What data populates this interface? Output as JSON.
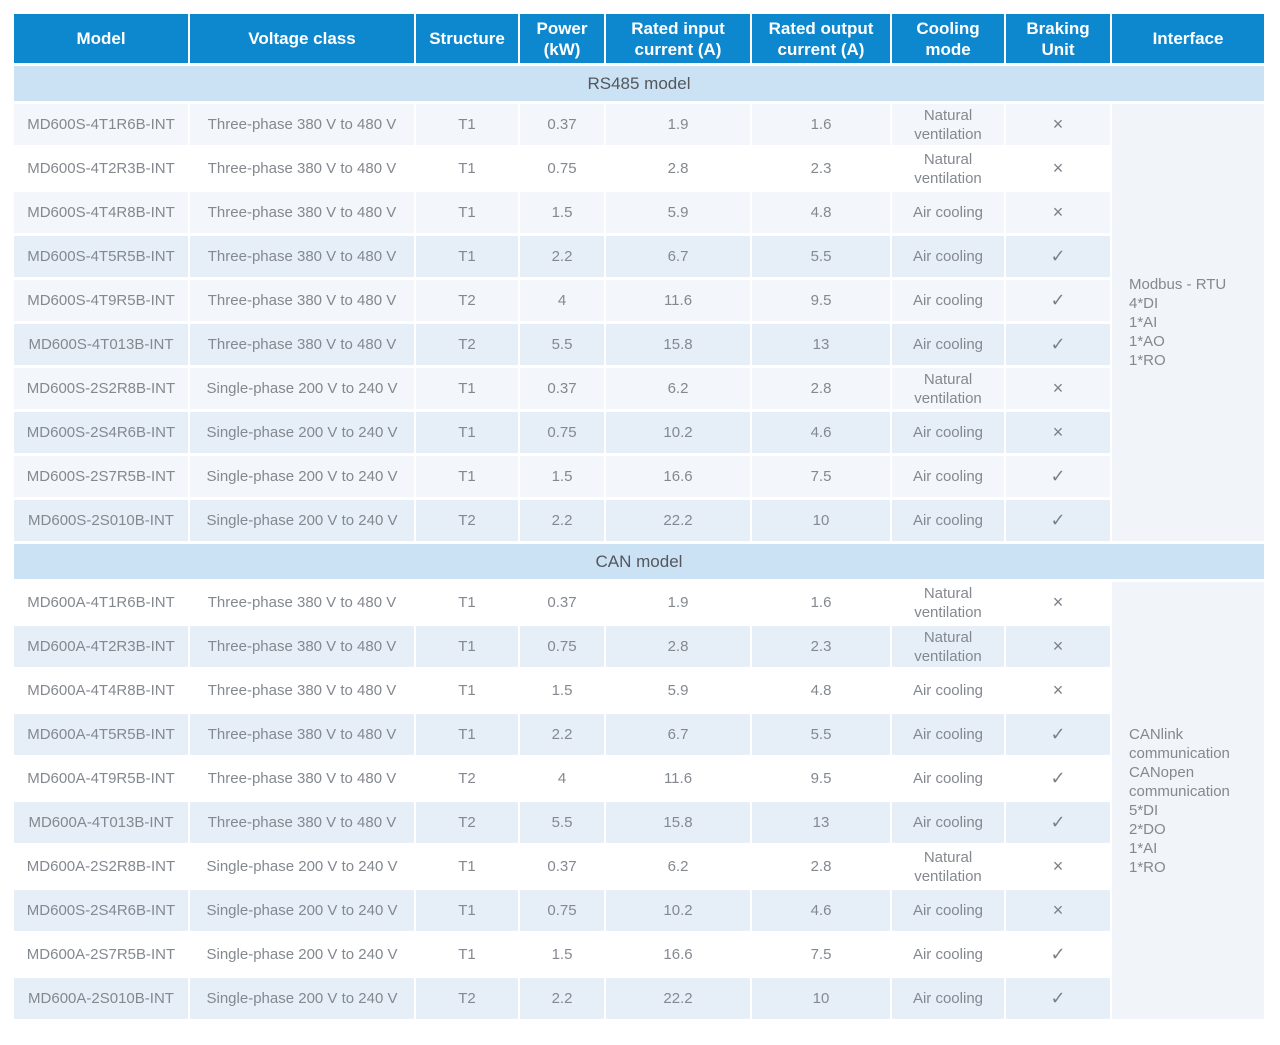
{
  "table": {
    "columns": [
      {
        "key": "model",
        "label": "Model"
      },
      {
        "key": "voltage",
        "label": "Voltage class"
      },
      {
        "key": "structure",
        "label": "Structure"
      },
      {
        "key": "power",
        "label": "Power\n(kW)"
      },
      {
        "key": "input",
        "label": "Rated input\ncurrent (A)"
      },
      {
        "key": "output",
        "label": "Rated output\ncurrent (A)"
      },
      {
        "key": "cooling",
        "label": "Cooling\nmode"
      },
      {
        "key": "braking",
        "label": "Braking\nUnit"
      },
      {
        "key": "interface",
        "label": "Interface"
      }
    ],
    "sections": [
      {
        "title": "RS485 model",
        "interface_lines": [
          "Modbus - RTU",
          "4*DI",
          "1*AI",
          "1*AO",
          "1*RO"
        ],
        "rows": [
          {
            "model": "MD600S-4T1R6B-INT",
            "voltage": "Three-phase 380 V to 480 V",
            "structure": "T1",
            "power": "0.37",
            "input": "1.9",
            "output": "1.6",
            "cooling": "Natural ventilation",
            "braking": "×",
            "shade": "light"
          },
          {
            "model": "MD600S-4T2R3B-INT",
            "voltage": "Three-phase 380 V to 480 V",
            "structure": "T1",
            "power": "0.75",
            "input": "2.8",
            "output": "2.3",
            "cooling": "Natural ventilation",
            "braking": "×",
            "shade": "white"
          },
          {
            "model": "MD600S-4T4R8B-INT",
            "voltage": "Three-phase 380 V to 480 V",
            "structure": "T1",
            "power": "1.5",
            "input": "5.9",
            "output": "4.8",
            "cooling": "Air cooling",
            "braking": "×",
            "shade": "light"
          },
          {
            "model": "MD600S-4T5R5B-INT",
            "voltage": "Three-phase 380 V to 480 V",
            "structure": "T1",
            "power": "2.2",
            "input": "6.7",
            "output": "5.5",
            "cooling": "Air cooling",
            "braking": "✓",
            "shade": "blue"
          },
          {
            "model": "MD600S-4T9R5B-INT",
            "voltage": "Three-phase 380 V to 480 V",
            "structure": "T2",
            "power": "4",
            "input": "11.6",
            "output": "9.5",
            "cooling": "Air cooling",
            "braking": "✓",
            "shade": "light"
          },
          {
            "model": "MD600S-4T013B-INT",
            "voltage": "Three-phase 380 V to 480 V",
            "structure": "T2",
            "power": "5.5",
            "input": "15.8",
            "output": "13",
            "cooling": "Air cooling",
            "braking": "✓",
            "shade": "blue"
          },
          {
            "model": "MD600S-2S2R8B-INT",
            "voltage": "Single-phase 200 V to 240 V",
            "structure": "T1",
            "power": "0.37",
            "input": "6.2",
            "output": "2.8",
            "cooling": "Natural ventilation",
            "braking": "×",
            "shade": "light"
          },
          {
            "model": "MD600S-2S4R6B-INT",
            "voltage": "Single-phase 200 V to 240 V",
            "structure": "T1",
            "power": "0.75",
            "input": "10.2",
            "output": "4.6",
            "cooling": "Air cooling",
            "braking": "×",
            "shade": "blue"
          },
          {
            "model": "MD600S-2S7R5B-INT",
            "voltage": "Single-phase 200 V to 240 V",
            "structure": "T1",
            "power": "1.5",
            "input": "16.6",
            "output": "7.5",
            "cooling": "Air cooling",
            "braking": "✓",
            "shade": "light"
          },
          {
            "model": "MD600S-2S010B-INT",
            "voltage": "Single-phase 200 V to 240 V",
            "structure": "T2",
            "power": "2.2",
            "input": "22.2",
            "output": "10",
            "cooling": "Air cooling",
            "braking": "✓",
            "shade": "blue"
          }
        ]
      },
      {
        "title": "CAN model",
        "interface_lines": [
          "CANlink communication",
          "CANopen communication",
          "5*DI",
          "2*DO",
          "1*AI",
          "1*RO"
        ],
        "rows": [
          {
            "model": "MD600A-4T1R6B-INT",
            "voltage": "Three-phase 380 V to 480 V",
            "structure": "T1",
            "power": "0.37",
            "input": "1.9",
            "output": "1.6",
            "cooling": "Natural ventilation",
            "braking": "×",
            "shade": "white"
          },
          {
            "model": "MD600A-4T2R3B-INT",
            "voltage": "Three-phase 380 V to 480 V",
            "structure": "T1",
            "power": "0.75",
            "input": "2.8",
            "output": "2.3",
            "cooling": "Natural ventilation",
            "braking": "×",
            "shade": "blue"
          },
          {
            "model": "MD600A-4T4R8B-INT",
            "voltage": "Three-phase 380 V to 480 V",
            "structure": "T1",
            "power": "1.5",
            "input": "5.9",
            "output": "4.8",
            "cooling": "Air cooling",
            "braking": "×",
            "shade": "white"
          },
          {
            "model": "MD600A-4T5R5B-INT",
            "voltage": "Three-phase 380 V to 480 V",
            "structure": "T1",
            "power": "2.2",
            "input": "6.7",
            "output": "5.5",
            "cooling": "Air cooling",
            "braking": "✓",
            "shade": "blue"
          },
          {
            "model": "MD600A-4T9R5B-INT",
            "voltage": "Three-phase 380 V to 480 V",
            "structure": "T2",
            "power": "4",
            "input": "11.6",
            "output": "9.5",
            "cooling": "Air cooling",
            "braking": "✓",
            "shade": "white"
          },
          {
            "model": "MD600A-4T013B-INT",
            "voltage": "Three-phase 380 V to 480 V",
            "structure": "T2",
            "power": "5.5",
            "input": "15.8",
            "output": "13",
            "cooling": "Air cooling",
            "braking": "✓",
            "shade": "blue"
          },
          {
            "model": "MD600A-2S2R8B-INT",
            "voltage": "Single-phase 200 V to 240 V",
            "structure": "T1",
            "power": "0.37",
            "input": "6.2",
            "output": "2.8",
            "cooling": "Natural ventilation",
            "braking": "×",
            "shade": "white"
          },
          {
            "model": "MD600S-2S4R6B-INT",
            "voltage": "Single-phase 200 V to 240 V",
            "structure": "T1",
            "power": "0.75",
            "input": "10.2",
            "output": "4.6",
            "cooling": "Air cooling",
            "braking": "×",
            "shade": "blue"
          },
          {
            "model": "MD600A-2S7R5B-INT",
            "voltage": "Single-phase 200 V to 240 V",
            "structure": "T1",
            "power": "1.5",
            "input": "16.6",
            "output": "7.5",
            "cooling": "Air cooling",
            "braking": "✓",
            "shade": "white"
          },
          {
            "model": "MD600A-2S010B-INT",
            "voltage": "Single-phase 200 V to 240 V",
            "structure": "T2",
            "power": "2.2",
            "input": "22.2",
            "output": "10",
            "cooling": "Air cooling",
            "braking": "✓",
            "shade": "blue"
          }
        ]
      }
    ]
  },
  "colors": {
    "header_bg": "#0d87cd",
    "header_text": "#ffffff",
    "section_band_bg": "#cbe1f4",
    "section_band_text": "#54575d",
    "row_white": "#ffffff",
    "row_light": "#f3f7fb",
    "row_blue": "#e6eff8",
    "interface_bg": "#f1f5f9",
    "body_text": "#84888f",
    "symbol_text": "#7b8086",
    "grid_line": "#ffffff"
  }
}
